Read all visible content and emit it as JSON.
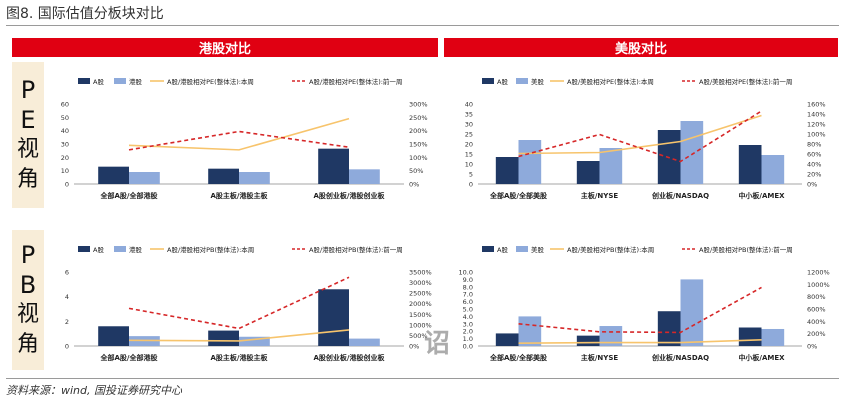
{
  "page": {
    "figure_title": "图8. 国际估值分板块对比",
    "source": "资料来源：wind, 国投证券研究中心",
    "side_pe": [
      "P",
      "E",
      "视",
      "角"
    ],
    "side_pb": [
      "P",
      "B",
      "视",
      "角"
    ],
    "banner_hk": "港股对比",
    "banner_us": "美股对比",
    "watermark": "诏"
  },
  "colors": {
    "banner": "#e00012",
    "a_share": "#1f3864",
    "foreign": "#8eaadb",
    "relative_now": "#f7c46c",
    "relative_prev": "#d62728",
    "side_bg": "#f8edd8"
  },
  "chart_data": [
    {
      "id": "hk_pe",
      "type": "bar",
      "categories": [
        "全部A股/全部港股",
        "A股主板/港股主板",
        "A股创业板/港股创业板"
      ],
      "series": [
        {
          "name": "A股",
          "values": [
            13,
            11.5,
            26.5
          ],
          "axis": "left",
          "color": "#1f3864"
        },
        {
          "name": "港股",
          "values": [
            9,
            9,
            11
          ],
          "axis": "left",
          "color": "#8eaadb"
        }
      ],
      "lines": [
        {
          "name": "A股/港股相对PE(整体法):本周",
          "values": [
            145,
            128,
            245
          ],
          "axis": "right",
          "color": "#f7c46c",
          "dash": false
        },
        {
          "name": "A股/港股相对PE(整体法):前一周",
          "values": [
            128,
            197,
            138
          ],
          "axis": "right",
          "color": "#d62728",
          "dash": true
        }
      ],
      "ylim": [
        0,
        60
      ],
      "yticks": [
        0,
        10,
        20,
        30,
        40,
        50,
        60
      ],
      "y2lim": [
        0,
        300
      ],
      "y2ticks": [
        "0%",
        "50%",
        "100%",
        "150%",
        "200%",
        "250%",
        "300%"
      ],
      "legend": "top"
    },
    {
      "id": "us_pe",
      "type": "bar",
      "categories": [
        "全部A股/全部美股",
        "主板/NYSE",
        "创业板/NASDAQ",
        "中小板/AMEX"
      ],
      "series": [
        {
          "name": "A股",
          "values": [
            13.5,
            11.5,
            27,
            19.5
          ],
          "axis": "left",
          "color": "#1f3864"
        },
        {
          "name": "美股",
          "values": [
            22,
            18,
            31.5,
            14.5
          ],
          "axis": "left",
          "color": "#8eaadb"
        }
      ],
      "lines": [
        {
          "name": "A股/美股相对PE(整体法):本周",
          "values": [
            61,
            63,
            85,
            137
          ],
          "axis": "right",
          "color": "#f7c46c",
          "dash": false
        },
        {
          "name": "A股/美股相对PE(整体法):前一周",
          "values": [
            55,
            99,
            45,
            146
          ],
          "axis": "right",
          "color": "#d62728",
          "dash": true
        }
      ],
      "ylim": [
        0,
        40
      ],
      "yticks": [
        0,
        5,
        10,
        15,
        20,
        25,
        30,
        35,
        40
      ],
      "y2lim": [
        0,
        160
      ],
      "y2ticks": [
        "0%",
        "20%",
        "40%",
        "60%",
        "80%",
        "100%",
        "120%",
        "140%",
        "160%"
      ],
      "legend": "top"
    },
    {
      "id": "hk_pb",
      "type": "bar",
      "categories": [
        "全部A股/全部港股",
        "A股主板/港股主板",
        "A股创业板/港股创业板"
      ],
      "series": [
        {
          "name": "A股",
          "values": [
            1.6,
            1.25,
            4.6
          ],
          "axis": "left",
          "color": "#1f3864"
        },
        {
          "name": "港股",
          "values": [
            0.8,
            0.75,
            0.6
          ],
          "axis": "left",
          "color": "#8eaadb"
        }
      ],
      "lines": [
        {
          "name": "A股/港股相对PB(整体法):本周",
          "values": [
            270,
            240,
            760
          ],
          "axis": "right",
          "color": "#f7c46c",
          "dash": false
        },
        {
          "name": "A股/港股相对PB(整体法):前一周",
          "values": [
            1780,
            830,
            3250
          ],
          "axis": "right",
          "color": "#d62728",
          "dash": true
        }
      ],
      "ylim": [
        0,
        6
      ],
      "yticks": [
        0,
        2,
        4,
        6
      ],
      "y2lim": [
        0,
        3500
      ],
      "y2ticks": [
        "0%",
        "500%",
        "1000%",
        "1500%",
        "2000%",
        "2500%",
        "3000%",
        "3500%"
      ],
      "legend": "top"
    },
    {
      "id": "us_pb",
      "type": "bar",
      "categories": [
        "全部A股/全部美股",
        "主板/NYSE",
        "创业板/NASDAQ",
        "中小板/AMEX"
      ],
      "series": [
        {
          "name": "A股",
          "values": [
            1.7,
            1.4,
            4.7,
            2.5
          ],
          "axis": "left",
          "color": "#1f3864"
        },
        {
          "name": "美股",
          "values": [
            4.0,
            2.7,
            9.0,
            2.3
          ],
          "axis": "left",
          "color": "#8eaadb"
        }
      ],
      "lines": [
        {
          "name": "A股/美股相对PB(整体法):本周",
          "values": [
            45,
            55,
            55,
            100
          ],
          "axis": "right",
          "color": "#f7c46c",
          "dash": false
        },
        {
          "name": "A股/美股相对PB(整体法):前一周",
          "values": [
            360,
            230,
            220,
            950
          ],
          "axis": "right",
          "color": "#d62728",
          "dash": true
        }
      ],
      "ylim": [
        0,
        10
      ],
      "yticks": [
        "0.0",
        "1.0",
        "2.0",
        "3.0",
        "4.0",
        "5.0",
        "6.0",
        "7.0",
        "8.0",
        "9.0",
        "10.0"
      ],
      "y2lim": [
        0,
        1200
      ],
      "y2ticks": [
        "0%",
        "200%",
        "400%",
        "600%",
        "800%",
        "1000%",
        "1200%"
      ],
      "legend": "top"
    }
  ]
}
